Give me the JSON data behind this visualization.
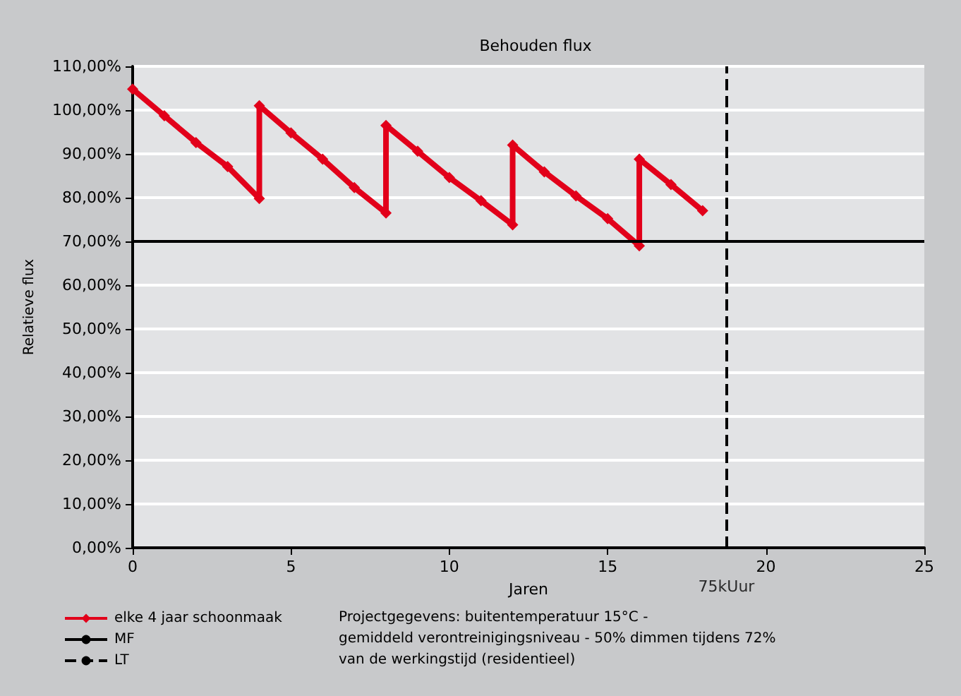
{
  "chart_data": {
    "type": "line",
    "title": "Behouden flux",
    "xlabel": "Jaren",
    "ylabel": "Relatieve flux",
    "series": [
      {
        "name": "elke 4 jaar schoonmaak",
        "color": "#e2001a",
        "x": [
          0,
          1,
          2,
          3,
          4,
          4,
          5,
          6,
          7,
          8,
          8,
          9,
          10,
          11,
          12,
          12,
          13,
          14,
          15,
          16,
          16,
          17,
          18
        ],
        "values": [
          104.8,
          98.7,
          92.6,
          87.1,
          79.8,
          101,
          94.8,
          88.8,
          82.3,
          76.5,
          96.5,
          90.6,
          84.6,
          79.3,
          73.8,
          92,
          85.9,
          80.4,
          75.2,
          69,
          88.8,
          83,
          77
        ]
      }
    ],
    "xlim": [
      0,
      25
    ],
    "xticks": [
      0,
      5,
      10,
      15,
      20,
      25
    ],
    "ylim": [
      0,
      110
    ],
    "yticks": [
      {
        "value": 0,
        "label": "0,00%"
      },
      {
        "value": 10,
        "label": "10,00%"
      },
      {
        "value": 20,
        "label": "20,00%"
      },
      {
        "value": 30,
        "label": "30,00%"
      },
      {
        "value": 40,
        "label": "40,00%"
      },
      {
        "value": 50,
        "label": "50,00%"
      },
      {
        "value": 60,
        "label": "60,00%"
      },
      {
        "value": 70,
        "label": "70,00%"
      },
      {
        "value": 80,
        "label": "80,00%"
      },
      {
        "value": 90,
        "label": "90,00%"
      },
      {
        "value": 100,
        "label": "100,00%"
      },
      {
        "value": 110,
        "label": "110,00%"
      }
    ],
    "ref_lines": [
      {
        "axis": "y",
        "value": 70,
        "label": "MF",
        "color": "#000000",
        "line_style": "solid"
      },
      {
        "axis": "x",
        "value": 18.75,
        "label": "LT",
        "color": "#000000",
        "line_style": "dashed"
      }
    ],
    "annotations": [
      {
        "text": "75kUur",
        "x": 18.75,
        "y": 0
      },
      "Projectgegevens: buitentemperatuur 15°C -\ngemiddeld verontreinigingsniveau - 50% dimmen tijdens 72%\nvan de werkingstijd (residentieel)"
    ],
    "grid": "y",
    "legend": "bottom left",
    "marker": "diamond",
    "line_style": "solid"
  }
}
